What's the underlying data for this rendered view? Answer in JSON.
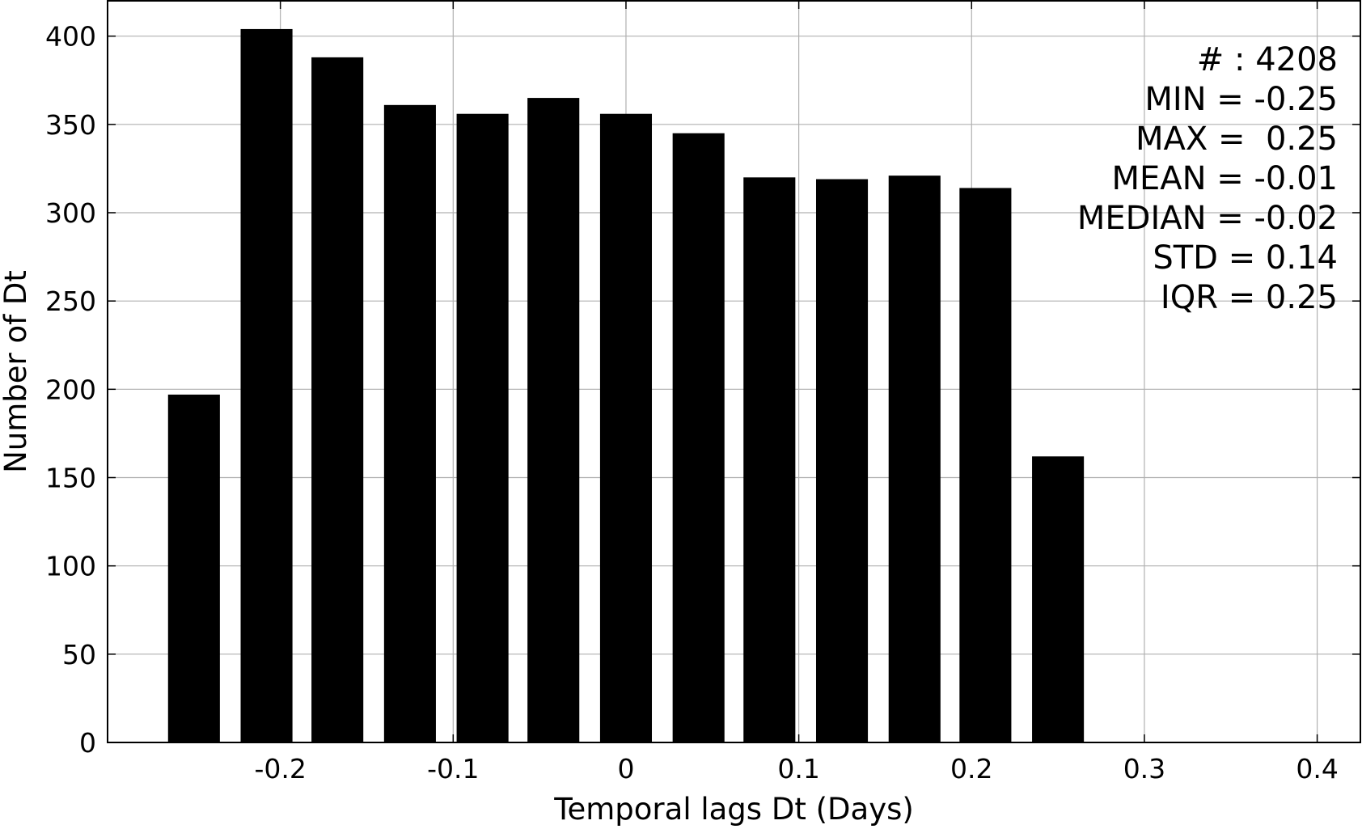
{
  "chart_data": {
    "type": "bar",
    "xlabel": "Temporal lags Dt (Days)",
    "ylabel": "Number of Dt",
    "xlim": [
      -0.3,
      0.425
    ],
    "ylim": [
      0,
      420
    ],
    "x_ticks": [
      -0.2,
      -0.1,
      0,
      0.1,
      0.2,
      0.3,
      0.4
    ],
    "x_tick_labels": [
      "-0.2",
      "-0.1",
      "0",
      "0.1",
      "0.2",
      "0.3",
      "0.4"
    ],
    "y_ticks": [
      0,
      50,
      100,
      150,
      200,
      250,
      300,
      350,
      400
    ],
    "y_tick_labels": [
      "0",
      "50",
      "100",
      "150",
      "200",
      "250",
      "300",
      "350",
      "400"
    ],
    "bar_width": 0.03,
    "x": [
      -0.25,
      -0.208,
      -0.167,
      -0.125,
      -0.083,
      -0.042,
      0.0,
      0.042,
      0.083,
      0.125,
      0.167,
      0.208,
      0.25
    ],
    "values": [
      197,
      404,
      388,
      361,
      356,
      365,
      356,
      345,
      320,
      319,
      321,
      314,
      162
    ],
    "bar_color": "#000000",
    "grid": true,
    "grid_color": "#b0b0b0",
    "stats": [
      "# : 4208",
      "MIN = -0.25",
      "MAX =  0.25",
      "MEAN = -0.01",
      "MEDIAN = -0.02",
      "STD = 0.14",
      "IQR = 0.25"
    ],
    "stats_placement": "top-right"
  }
}
